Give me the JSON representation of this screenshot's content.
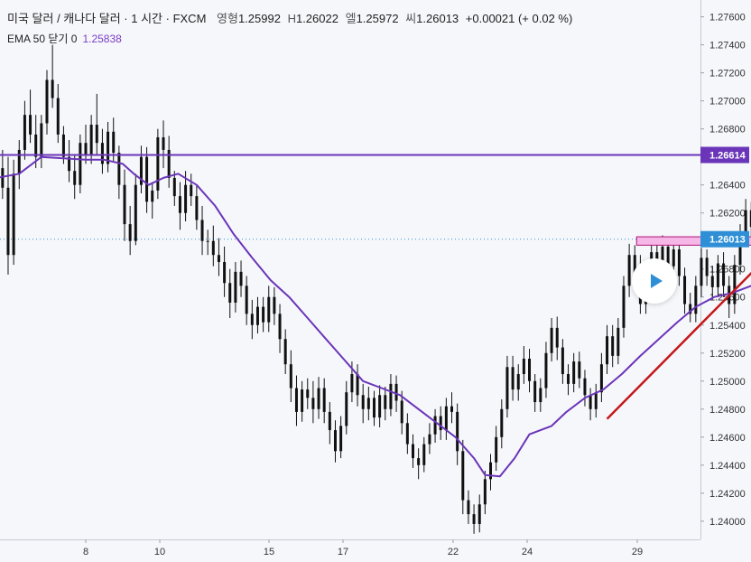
{
  "legend": {
    "symbol": "미국 달러 / 캐나다 달러 · 1 시간 · FXCM",
    "o_label": "영형",
    "o_value": "1.25992",
    "h_label": "H",
    "h_value": "1.26022",
    "l_label": "엘",
    "l_value": "1.25972",
    "c_label": "씨",
    "c_value": "1.26013",
    "change": "+0.00021 (+ 0.02 %)",
    "ema_label": "EMA 50 닫기 0",
    "ema_value": "1.25838"
  },
  "colors": {
    "bg": "#f6f7fb",
    "candle": "#111111",
    "ema": "#6a35b8",
    "resistance": "#6a35b8",
    "trendline": "#c4181b",
    "arrow": "#c4181b",
    "zone_fill": "#f4b7e6",
    "zone_stroke": "#b0157a",
    "price_badge": "#2f8fd6",
    "play": "#2f8fd6"
  },
  "play_button": {
    "icon": "play-icon"
  },
  "chart_data": {
    "type": "candlestick",
    "y_ticks": [
      "1.24000",
      "1.24200",
      "1.24400",
      "1.24600",
      "1.24800",
      "1.25000",
      "1.25200",
      "1.25400",
      "1.25600",
      "1.25800",
      "1.26000",
      "1.26200",
      "1.26400",
      "1.26600",
      "1.26800",
      "1.27000",
      "1.27200",
      "1.27400",
      "1.27600"
    ],
    "x_ticks": [
      "8",
      "10",
      "15",
      "17",
      "22",
      "24",
      "29"
    ],
    "ylim": [
      1.2387,
      1.2772
    ],
    "resistance": {
      "value": 1.26614,
      "label": "1.26614"
    },
    "current_price": {
      "value": 1.26013,
      "label": "1.26013"
    },
    "zone": {
      "low": 1.2597,
      "high": 1.2603,
      "from_day": 22.9,
      "to_day": 27.0
    },
    "trendline": {
      "from": [
        22.1,
        1.2473
      ],
      "to": [
        27.8,
        1.2625
      ]
    },
    "arrow": {
      "at_day": 26.75,
      "from": 1.2607,
      "to": 1.2665
    },
    "ema_path": [
      [
        5.0,
        1.2638
      ],
      [
        5.6,
        1.2645
      ],
      [
        6.2,
        1.2648
      ],
      [
        6.8,
        1.266
      ],
      [
        7.4,
        1.2659
      ],
      [
        8.0,
        1.2658
      ],
      [
        8.5,
        1.2658
      ],
      [
        9.0,
        1.2655
      ],
      [
        9.3,
        1.2648
      ],
      [
        9.7,
        1.264
      ],
      [
        10.1,
        1.2645
      ],
      [
        10.5,
        1.2648
      ],
      [
        11.0,
        1.264
      ],
      [
        11.5,
        1.2625
      ],
      [
        12.0,
        1.2605
      ],
      [
        12.5,
        1.2588
      ],
      [
        13.0,
        1.2572
      ],
      [
        13.5,
        1.256
      ],
      [
        14.0,
        1.2545
      ],
      [
        14.5,
        1.253
      ],
      [
        15.0,
        1.2515
      ],
      [
        15.5,
        1.25
      ],
      [
        16.0,
        1.2495
      ],
      [
        16.5,
        1.249
      ],
      [
        17.0,
        1.248
      ],
      [
        17.5,
        1.247
      ],
      [
        18.0,
        1.246
      ],
      [
        18.5,
        1.2445
      ],
      [
        18.8,
        1.2433
      ],
      [
        19.2,
        1.2432
      ],
      [
        19.6,
        1.2445
      ],
      [
        20.0,
        1.2462
      ],
      [
        20.6,
        1.2468
      ],
      [
        21.0,
        1.2478
      ],
      [
        21.5,
        1.2488
      ],
      [
        22.0,
        1.2494
      ],
      [
        22.5,
        1.2505
      ],
      [
        23.0,
        1.2518
      ],
      [
        23.5,
        1.253
      ],
      [
        24.0,
        1.2542
      ],
      [
        24.5,
        1.2553
      ],
      [
        25.0,
        1.256
      ],
      [
        25.5,
        1.2563
      ],
      [
        26.0,
        1.2568
      ],
      [
        26.5,
        1.2577
      ],
      [
        26.85,
        1.2584
      ]
    ],
    "candles": [
      [
        5.0,
        1.265,
        1.2672,
        1.264,
        1.2663
      ],
      [
        5.15,
        1.2663,
        1.267,
        1.2651,
        1.2657
      ],
      [
        5.3,
        1.2657,
        1.2681,
        1.2649,
        1.2675
      ],
      [
        5.45,
        1.2675,
        1.2681,
        1.2654,
        1.266
      ],
      [
        5.6,
        1.266,
        1.2678,
        1.2646,
        1.2652
      ],
      [
        5.75,
        1.2652,
        1.2665,
        1.263,
        1.2638
      ],
      [
        5.9,
        1.2638,
        1.266,
        1.2576,
        1.259
      ],
      [
        6.05,
        1.259,
        1.2658,
        1.2583,
        1.2648
      ],
      [
        6.2,
        1.2648,
        1.2672,
        1.2637,
        1.2665
      ],
      [
        6.35,
        1.2665,
        1.27,
        1.2658,
        1.269
      ],
      [
        6.5,
        1.269,
        1.2708,
        1.267,
        1.2676
      ],
      [
        6.65,
        1.2676,
        1.269,
        1.2652,
        1.266
      ],
      [
        6.8,
        1.266,
        1.269,
        1.2652,
        1.2684
      ],
      [
        6.95,
        1.2684,
        1.2722,
        1.2676,
        1.2715
      ],
      [
        7.1,
        1.2715,
        1.274,
        1.2695,
        1.2702
      ],
      [
        7.25,
        1.2702,
        1.2712,
        1.267,
        1.2676
      ],
      [
        7.4,
        1.2676,
        1.2682,
        1.2655,
        1.266
      ],
      [
        7.55,
        1.266,
        1.2672,
        1.2642,
        1.265
      ],
      [
        7.7,
        1.265,
        1.2662,
        1.263,
        1.264
      ],
      [
        7.85,
        1.264,
        1.2676,
        1.2634,
        1.267
      ],
      [
        8.0,
        1.267,
        1.2683,
        1.2655,
        1.2662
      ],
      [
        8.15,
        1.2662,
        1.269,
        1.2655,
        1.2683
      ],
      [
        8.3,
        1.2683,
        1.2705,
        1.2662,
        1.267
      ],
      [
        8.45,
        1.267,
        1.268,
        1.2648,
        1.2655
      ],
      [
        8.6,
        1.2655,
        1.2685,
        1.2649,
        1.2678
      ],
      [
        8.75,
        1.2678,
        1.2688,
        1.2657,
        1.2663
      ],
      [
        8.9,
        1.2663,
        1.2668,
        1.263,
        1.264
      ],
      [
        9.05,
        1.264,
        1.2651,
        1.26,
        1.2612
      ],
      [
        9.2,
        1.2612,
        1.2625,
        1.259,
        1.26
      ],
      [
        9.35,
        1.26,
        1.2648,
        1.2597,
        1.264
      ],
      [
        9.5,
        1.264,
        1.2668,
        1.2634,
        1.266
      ],
      [
        9.65,
        1.266,
        1.2667,
        1.262,
        1.2628
      ],
      [
        9.8,
        1.2628,
        1.2642,
        1.2616,
        1.2636
      ],
      [
        9.95,
        1.2636,
        1.268,
        1.263,
        1.2674
      ],
      [
        10.1,
        1.2674,
        1.2686,
        1.2652,
        1.2665
      ],
      [
        10.25,
        1.2665,
        1.2675,
        1.2638,
        1.2645
      ],
      [
        10.4,
        1.2645,
        1.265,
        1.2625,
        1.2632
      ],
      [
        10.55,
        1.2632,
        1.2642,
        1.2608,
        1.262
      ],
      [
        10.7,
        1.262,
        1.265,
        1.2614,
        1.264
      ],
      [
        10.85,
        1.264,
        1.2648,
        1.2625,
        1.2632
      ],
      [
        11.0,
        1.2632,
        1.264,
        1.2608,
        1.2615
      ],
      [
        11.15,
        1.2615,
        1.2625,
        1.259,
        1.26
      ],
      [
        11.3,
        1.26,
        1.2608,
        1.259,
        1.26
      ],
      [
        11.45,
        1.26,
        1.2611,
        1.2582,
        1.259
      ],
      [
        11.6,
        1.259,
        1.2602,
        1.2575,
        1.2585
      ],
      [
        11.75,
        1.2585,
        1.2596,
        1.256,
        1.257
      ],
      [
        11.9,
        1.257,
        1.258,
        1.2545,
        1.2556
      ],
      [
        12.05,
        1.2556,
        1.2585,
        1.2549,
        1.2578
      ],
      [
        12.2,
        1.2578,
        1.2586,
        1.256,
        1.2568
      ],
      [
        12.35,
        1.2568,
        1.2575,
        1.254,
        1.2548
      ],
      [
        12.5,
        1.2548,
        1.2558,
        1.253,
        1.254
      ],
      [
        12.65,
        1.254,
        1.256,
        1.2534,
        1.2553
      ],
      [
        12.8,
        1.2553,
        1.256,
        1.2535,
        1.2542
      ],
      [
        12.95,
        1.2542,
        1.2568,
        1.2535,
        1.256
      ],
      [
        13.1,
        1.256,
        1.2567,
        1.254,
        1.2548
      ],
      [
        13.25,
        1.2548,
        1.2555,
        1.252,
        1.253
      ],
      [
        13.4,
        1.253,
        1.2537,
        1.2505,
        1.2512
      ],
      [
        13.55,
        1.2512,
        1.2522,
        1.2485,
        1.2495
      ],
      [
        13.7,
        1.2495,
        1.2504,
        1.2468,
        1.2478
      ],
      [
        13.85,
        1.2478,
        1.25,
        1.2471,
        1.2494
      ],
      [
        14.0,
        1.2494,
        1.2502,
        1.248,
        1.2488
      ],
      [
        14.15,
        1.2488,
        1.25,
        1.247,
        1.248
      ],
      [
        14.3,
        1.248,
        1.2503,
        1.2473,
        1.2495
      ],
      [
        14.45,
        1.2495,
        1.2502,
        1.247,
        1.2478
      ],
      [
        14.6,
        1.2478,
        1.2485,
        1.2455,
        1.2465
      ],
      [
        14.75,
        1.2465,
        1.2472,
        1.2442,
        1.245
      ],
      [
        14.9,
        1.245,
        1.2475,
        1.2445,
        1.2468
      ],
      [
        15.05,
        1.2468,
        1.25,
        1.2462,
        1.2492
      ],
      [
        15.2,
        1.2492,
        1.2514,
        1.2485,
        1.2505
      ],
      [
        15.35,
        1.2505,
        1.2512,
        1.2482,
        1.249
      ],
      [
        15.5,
        1.249,
        1.2498,
        1.247,
        1.248
      ],
      [
        15.65,
        1.248,
        1.2496,
        1.2472,
        1.2488
      ],
      [
        15.8,
        1.2488,
        1.2493,
        1.2468,
        1.2474
      ],
      [
        15.95,
        1.2474,
        1.2497,
        1.2467,
        1.249
      ],
      [
        16.1,
        1.249,
        1.2496,
        1.2472,
        1.248
      ],
      [
        16.25,
        1.248,
        1.2505,
        1.2475,
        1.2498
      ],
      [
        16.4,
        1.2498,
        1.2504,
        1.2478,
        1.2486
      ],
      [
        16.55,
        1.2486,
        1.2493,
        1.2462,
        1.247
      ],
      [
        16.7,
        1.247,
        1.2477,
        1.2448,
        1.2455
      ],
      [
        16.85,
        1.2455,
        1.2462,
        1.2438,
        1.2445
      ],
      [
        17.0,
        1.2445,
        1.2452,
        1.243,
        1.244
      ],
      [
        17.15,
        1.244,
        1.246,
        1.2435,
        1.2455
      ],
      [
        17.3,
        1.2455,
        1.247,
        1.2448,
        1.2462
      ],
      [
        17.45,
        1.2462,
        1.248,
        1.2456,
        1.2475
      ],
      [
        17.6,
        1.2475,
        1.2482,
        1.2458,
        1.2465
      ],
      [
        17.75,
        1.2465,
        1.2488,
        1.2458,
        1.2482
      ],
      [
        17.9,
        1.2482,
        1.2492,
        1.247,
        1.2478
      ],
      [
        18.05,
        1.2478,
        1.2484,
        1.244,
        1.245
      ],
      [
        18.2,
        1.245,
        1.2458,
        1.2405,
        1.2415
      ],
      [
        18.35,
        1.2415,
        1.2422,
        1.2398,
        1.2405
      ],
      [
        18.5,
        1.2405,
        1.2412,
        1.2391,
        1.2398
      ],
      [
        18.65,
        1.2398,
        1.2419,
        1.2392,
        1.2412
      ],
      [
        18.8,
        1.2412,
        1.2436,
        1.2405,
        1.243
      ],
      [
        18.95,
        1.243,
        1.2448,
        1.2422,
        1.2442
      ],
      [
        19.1,
        1.2442,
        1.2468,
        1.2436,
        1.246
      ],
      [
        19.25,
        1.246,
        1.2487,
        1.2452,
        1.248
      ],
      [
        19.4,
        1.248,
        1.2518,
        1.2474,
        1.251
      ],
      [
        19.55,
        1.251,
        1.2518,
        1.2486,
        1.2494
      ],
      [
        19.7,
        1.2494,
        1.2512,
        1.2486,
        1.2505
      ],
      [
        19.85,
        1.2505,
        1.2525,
        1.2498,
        1.2516
      ],
      [
        20.0,
        1.2516,
        1.2523,
        1.2492,
        1.25
      ],
      [
        20.15,
        1.25,
        1.2505,
        1.2478,
        1.2485
      ],
      [
        20.3,
        1.2485,
        1.2502,
        1.2478,
        1.2495
      ],
      [
        20.45,
        1.2495,
        1.2528,
        1.2488,
        1.252
      ],
      [
        20.6,
        1.252,
        1.2545,
        1.2514,
        1.2538
      ],
      [
        20.75,
        1.2538,
        1.2546,
        1.2515,
        1.2524
      ],
      [
        20.9,
        1.2524,
        1.253,
        1.2498,
        1.2505
      ],
      [
        21.05,
        1.2505,
        1.2512,
        1.249,
        1.2498
      ],
      [
        21.2,
        1.2498,
        1.252,
        1.2492,
        1.2514
      ],
      [
        21.35,
        1.2514,
        1.2521,
        1.2495,
        1.2502
      ],
      [
        21.5,
        1.2502,
        1.2508,
        1.2482,
        1.249
      ],
      [
        21.65,
        1.249,
        1.2495,
        1.2472,
        1.248
      ],
      [
        21.8,
        1.248,
        1.2498,
        1.2474,
        1.2492
      ],
      [
        21.95,
        1.2492,
        1.252,
        1.2485,
        1.2512
      ],
      [
        22.1,
        1.2512,
        1.254,
        1.2505,
        1.2532
      ],
      [
        22.25,
        1.2532,
        1.254,
        1.251,
        1.2518
      ],
      [
        22.4,
        1.2518,
        1.2545,
        1.2512,
        1.2538
      ],
      [
        22.55,
        1.2538,
        1.2575,
        1.2531,
        1.2568
      ],
      [
        22.7,
        1.2568,
        1.2598,
        1.256,
        1.259
      ],
      [
        22.85,
        1.259,
        1.2597,
        1.2565,
        1.2575
      ],
      [
        23.0,
        1.2575,
        1.259,
        1.2548,
        1.2555
      ],
      [
        23.15,
        1.2555,
        1.2585,
        1.2548,
        1.2578
      ],
      [
        23.3,
        1.2578,
        1.26,
        1.257,
        1.2592
      ],
      [
        23.45,
        1.2592,
        1.2598,
        1.257,
        1.2578
      ],
      [
        23.6,
        1.2578,
        1.2604,
        1.257,
        1.2596
      ],
      [
        23.75,
        1.2596,
        1.2602,
        1.2575,
        1.2582
      ],
      [
        23.9,
        1.2582,
        1.26,
        1.2575,
        1.2594
      ],
      [
        24.05,
        1.2594,
        1.26,
        1.2568,
        1.2575
      ],
      [
        24.2,
        1.2575,
        1.2581,
        1.2548,
        1.2555
      ],
      [
        24.35,
        1.2555,
        1.2563,
        1.2542,
        1.2548
      ],
      [
        24.5,
        1.2548,
        1.2575,
        1.2542,
        1.2568
      ],
      [
        24.65,
        1.2568,
        1.2595,
        1.256,
        1.2588
      ],
      [
        24.8,
        1.2588,
        1.2594,
        1.2568,
        1.2575
      ],
      [
        24.95,
        1.2575,
        1.2582,
        1.256,
        1.2567
      ],
      [
        25.1,
        1.2567,
        1.259,
        1.256,
        1.2584
      ],
      [
        25.25,
        1.2584,
        1.2592,
        1.256,
        1.2568
      ],
      [
        25.4,
        1.2568,
        1.2575,
        1.2545,
        1.2555
      ],
      [
        25.55,
        1.2555,
        1.259,
        1.2548,
        1.2583
      ],
      [
        25.7,
        1.2583,
        1.2612,
        1.2576,
        1.2605
      ],
      [
        25.85,
        1.2605,
        1.263,
        1.2598,
        1.2622
      ],
      [
        26.0,
        1.2622,
        1.2628,
        1.2602,
        1.261
      ],
      [
        26.15,
        1.261,
        1.2622,
        1.26,
        1.2615
      ],
      [
        26.3,
        1.2615,
        1.2621,
        1.2598,
        1.2605
      ]
    ]
  }
}
